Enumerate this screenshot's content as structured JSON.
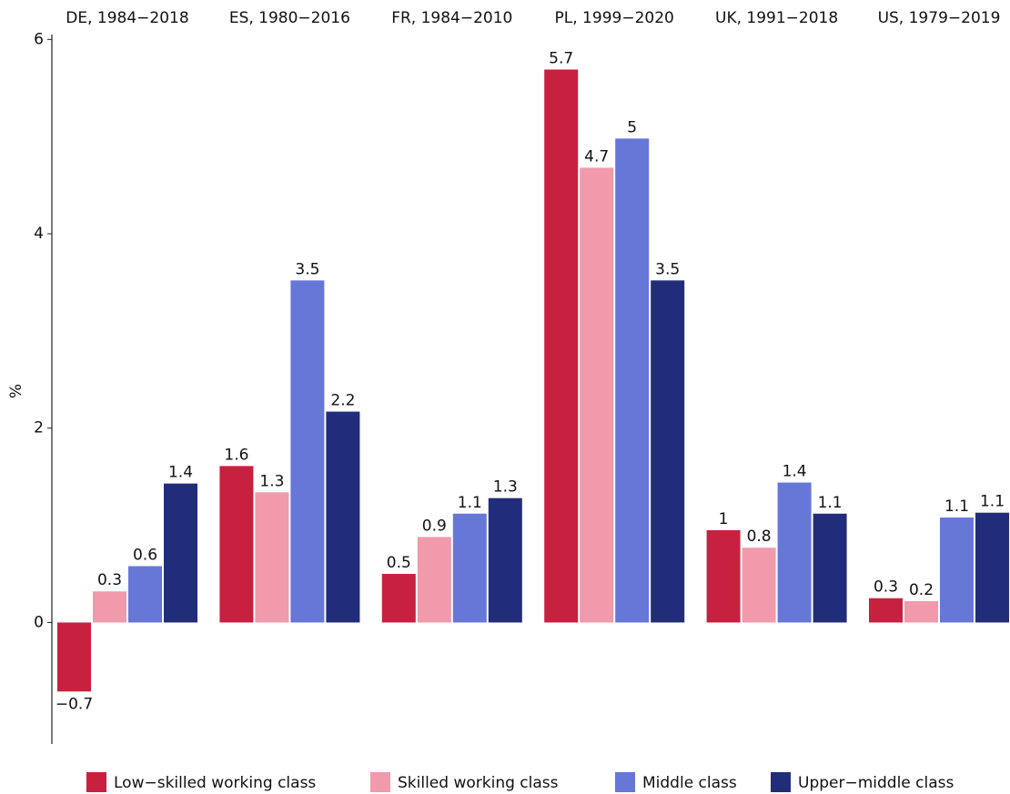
{
  "chart_data": {
    "type": "bar",
    "y_label": "%",
    "categories": [
      "DE, 1984−2018",
      "ES, 1980−2016",
      "FR, 1984−2010",
      "PL, 1999−2020",
      "UK, 1991−2018",
      "US, 1979−2019"
    ],
    "series": [
      {
        "name": "Low−skilled working class",
        "color": "#c8203f",
        "values": [
          -0.71,
          1.61,
          0.5,
          5.69,
          0.95,
          0.25
        ],
        "value_labels": [
          "−0.7",
          "1.6",
          "0.5",
          "5.7",
          "1",
          "0.3"
        ]
      },
      {
        "name": "Skilled working class",
        "color": "#f09aac",
        "values": [
          0.32,
          1.34,
          0.88,
          4.68,
          0.77,
          0.22
        ],
        "value_labels": [
          "0.3",
          "1.3",
          "0.9",
          "4.7",
          "0.8",
          "0.2"
        ]
      },
      {
        "name": "Middle class",
        "color": "#6677d8",
        "values": [
          0.58,
          3.52,
          1.12,
          4.98,
          1.44,
          1.08
        ],
        "value_labels": [
          "0.6",
          "3.5",
          "1.1",
          "5",
          "1.4",
          "1.1"
        ]
      },
      {
        "name": "Upper−middle class",
        "color": "#212d7a",
        "values": [
          1.43,
          2.17,
          1.28,
          3.52,
          1.12,
          1.13
        ],
        "value_labels": [
          "1.4",
          "2.2",
          "1.3",
          "3.5",
          "1.1",
          "1.1"
        ]
      }
    ],
    "ylim": [
      -1.25,
      6.05
    ],
    "yticks": [
      0,
      2,
      4,
      6
    ],
    "legend": "bottom"
  }
}
